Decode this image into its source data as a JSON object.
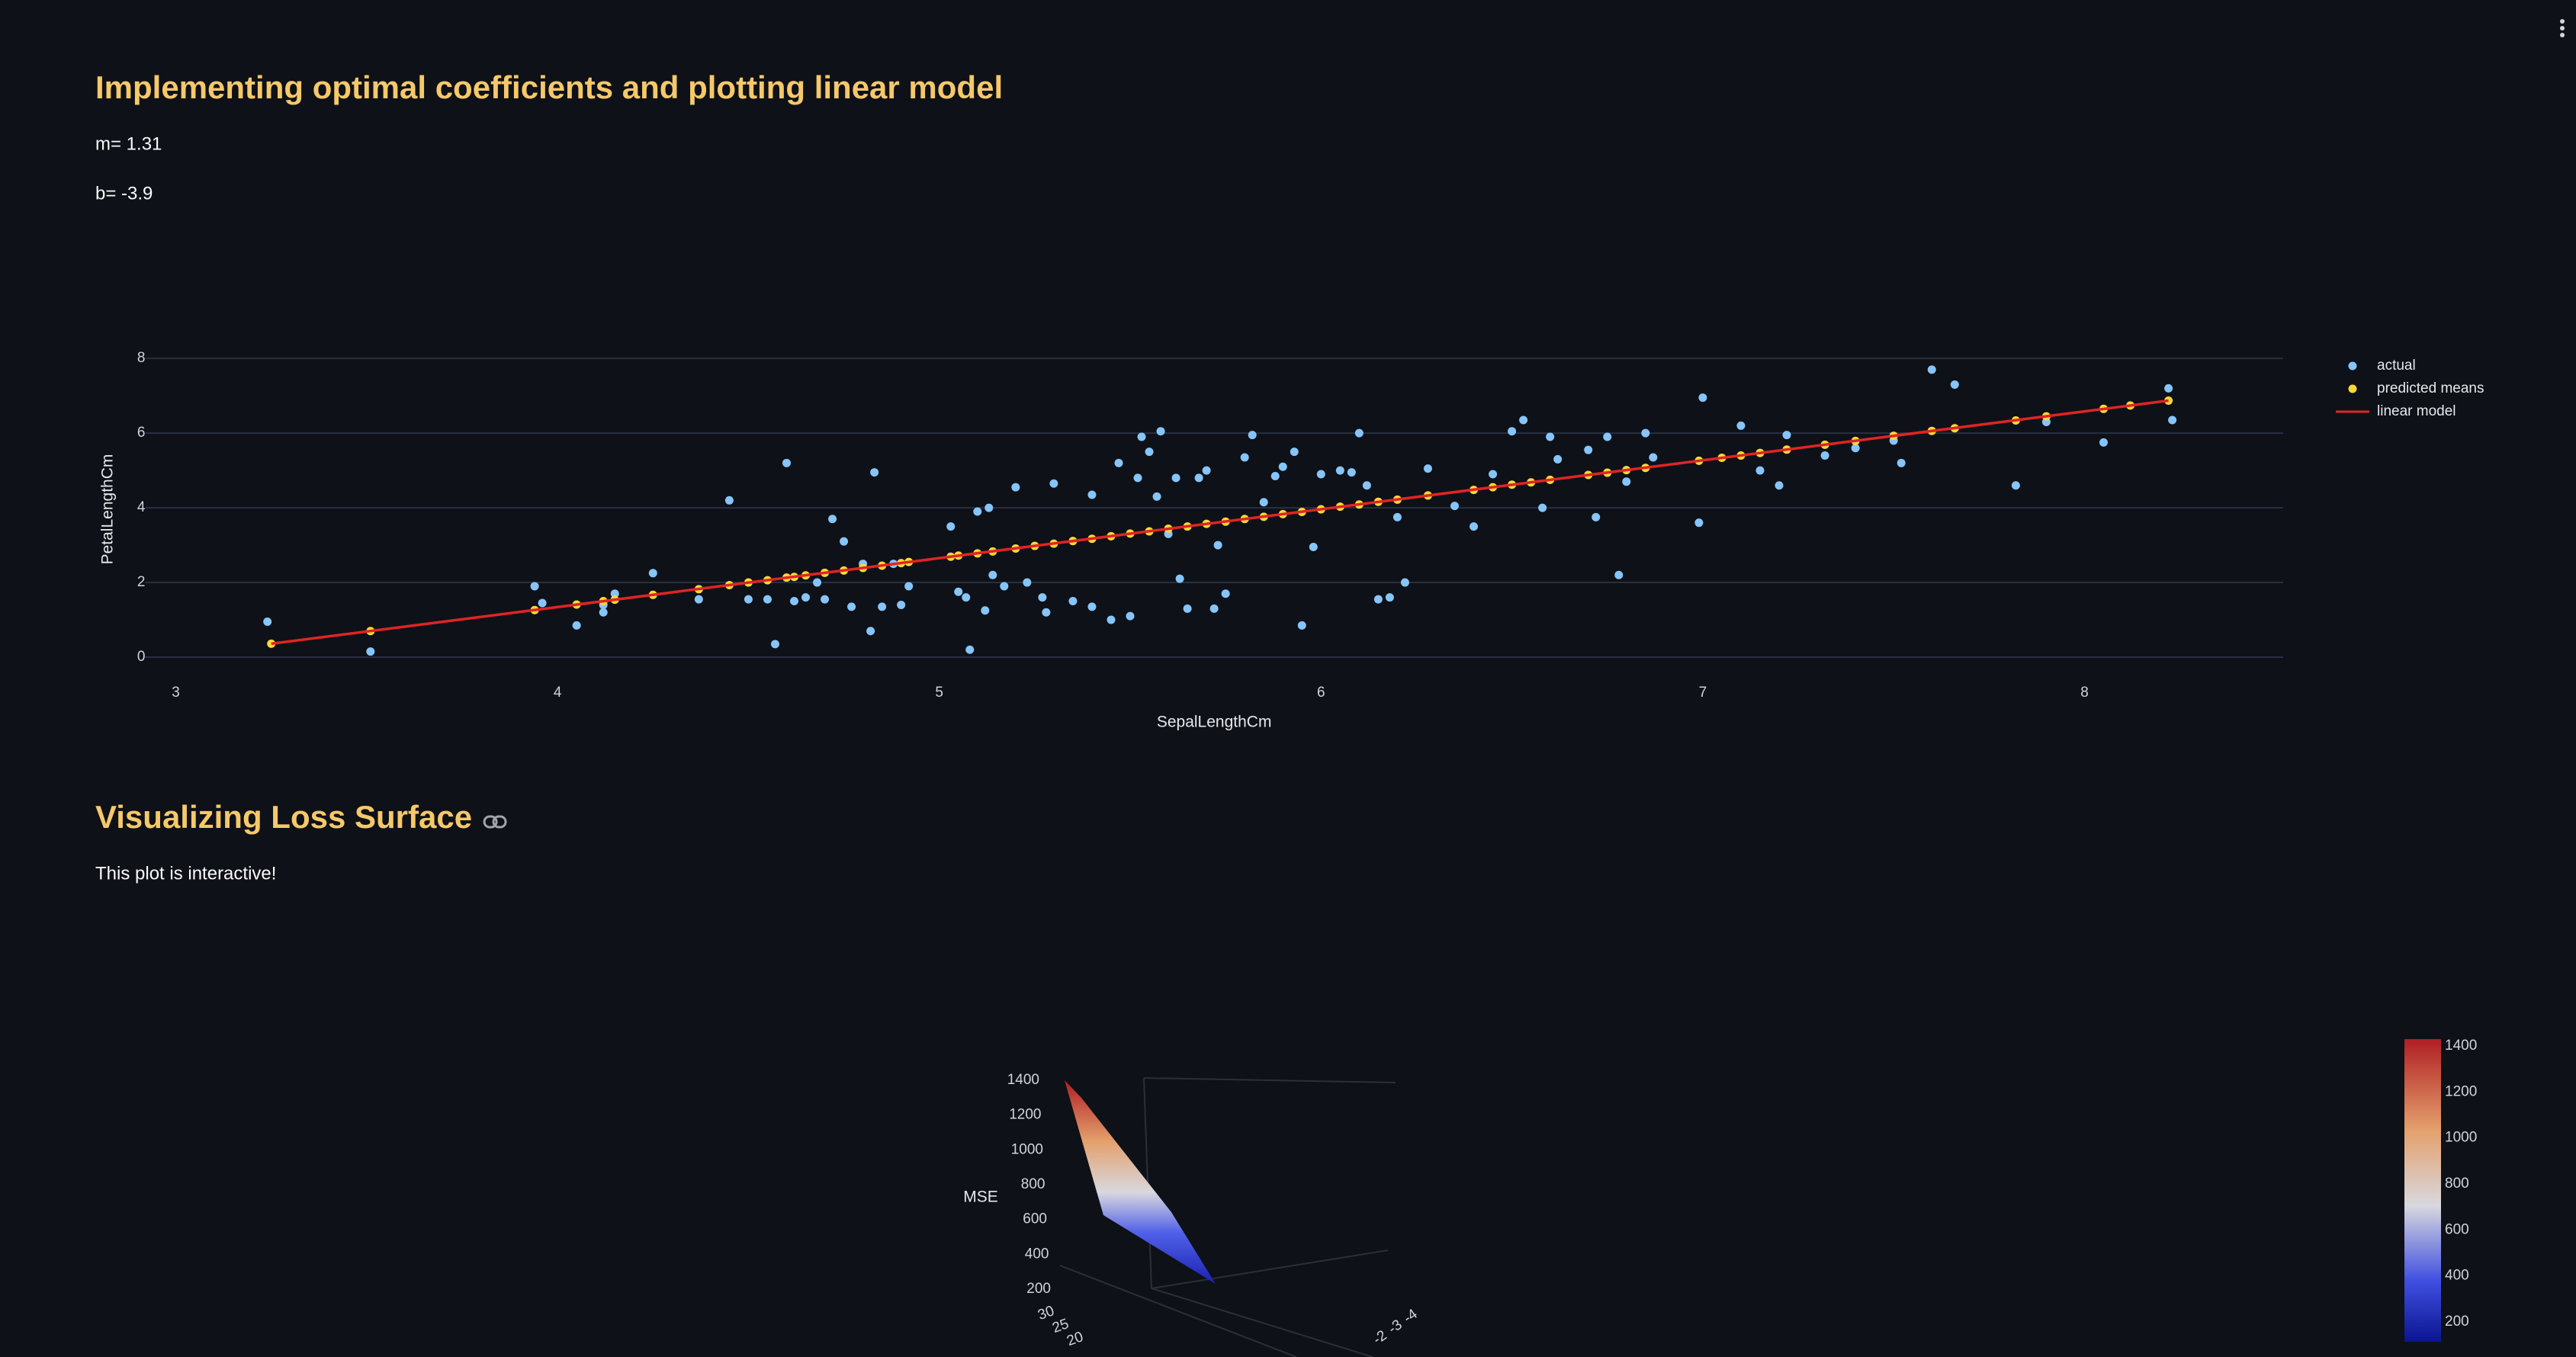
{
  "header": {
    "title": "Implementing optimal coefficients and plotting linear model",
    "m": "m= 1.31",
    "b": "b= -3.9"
  },
  "chart_data": {
    "type": "scatter",
    "xlabel": "SepalLengthCm",
    "ylabel": "PetalLengthCm",
    "xlim": [
      2.92,
      8.52
    ],
    "ylim": [
      -0.4,
      8.8
    ],
    "xticks": [
      3,
      4,
      5,
      6,
      7,
      8
    ],
    "yticks": [
      0,
      2,
      4,
      6,
      8
    ],
    "grid": "y",
    "legend": "right",
    "series": [
      {
        "name": "actual",
        "color": "#86c5fa",
        "mode": "markers",
        "x": [
          3.24,
          3.51,
          3.94,
          3.96,
          4.05,
          4.12,
          4.12,
          4.15,
          4.25,
          4.37,
          4.45,
          4.5,
          4.55,
          4.57,
          4.6,
          4.62,
          4.65,
          4.68,
          4.7,
          4.72,
          4.75,
          4.77,
          4.8,
          4.82,
          4.83,
          4.85,
          4.88,
          4.9,
          4.92,
          5.03,
          5.05,
          5.07,
          5.08,
          5.1,
          5.12,
          5.13,
          5.14,
          5.17,
          5.2,
          5.23,
          5.27,
          5.28,
          5.3,
          5.35,
          5.4,
          5.4,
          5.45,
          5.47,
          5.5,
          5.52,
          5.53,
          5.55,
          5.57,
          5.58,
          5.6,
          5.62,
          5.63,
          5.65,
          5.68,
          5.7,
          5.72,
          5.73,
          5.75,
          5.8,
          5.82,
          5.85,
          5.88,
          5.9,
          5.93,
          5.95,
          5.98,
          6.0,
          6.05,
          6.08,
          6.1,
          6.12,
          6.15,
          6.18,
          6.2,
          6.22,
          6.28,
          6.35,
          6.4,
          6.45,
          6.5,
          6.53,
          6.58,
          6.6,
          6.62,
          6.7,
          6.72,
          6.75,
          6.78,
          6.8,
          6.85,
          6.87,
          6.99,
          7.0,
          7.1,
          7.15,
          7.2,
          7.22,
          7.32,
          7.4,
          7.5,
          7.52,
          7.6,
          7.66,
          7.82,
          7.9,
          8.05,
          8.22,
          8.23
        ],
        "values": [
          0.95,
          0.15,
          1.9,
          1.45,
          0.85,
          1.2,
          1.4,
          1.7,
          2.25,
          1.55,
          4.2,
          1.55,
          1.55,
          0.35,
          5.2,
          1.5,
          1.6,
          2.0,
          1.55,
          3.7,
          3.1,
          1.35,
          2.5,
          0.7,
          4.95,
          1.35,
          2.5,
          1.4,
          1.9,
          3.5,
          1.75,
          1.6,
          0.2,
          3.9,
          1.25,
          4.0,
          2.2,
          1.9,
          4.55,
          2.0,
          1.6,
          1.2,
          4.65,
          1.5,
          1.35,
          4.35,
          1.0,
          5.2,
          1.1,
          4.8,
          5.9,
          5.5,
          4.3,
          6.05,
          3.3,
          4.8,
          2.1,
          1.3,
          4.8,
          5.0,
          1.3,
          3.0,
          1.7,
          5.35,
          5.95,
          4.15,
          4.85,
          5.1,
          5.5,
          0.85,
          2.95,
          4.9,
          5.0,
          4.95,
          6.0,
          4.6,
          1.55,
          1.6,
          3.75,
          2.0,
          5.05,
          4.05,
          3.5,
          4.9,
          6.05,
          6.35,
          4.0,
          5.9,
          5.3,
          5.55,
          3.75,
          5.9,
          2.2,
          4.7,
          6.0,
          5.35,
          3.6,
          6.95,
          6.2,
          5.0,
          4.6,
          5.95,
          5.4,
          5.6,
          5.8,
          5.2,
          7.7,
          7.3,
          4.6,
          6.3,
          5.75,
          7.2,
          6.35
        ]
      },
      {
        "name": "predicted means",
        "color": "#fdd835",
        "mode": "markers",
        "x": [
          3.25,
          3.51,
          3.94,
          4.05,
          4.12,
          4.15,
          4.25,
          4.37,
          4.45,
          4.5,
          4.55,
          4.6,
          4.62,
          4.65,
          4.7,
          4.75,
          4.8,
          4.85,
          4.9,
          4.92,
          5.03,
          5.05,
          5.1,
          5.14,
          5.2,
          5.25,
          5.3,
          5.35,
          5.4,
          5.45,
          5.5,
          5.55,
          5.6,
          5.65,
          5.7,
          5.75,
          5.8,
          5.85,
          5.9,
          5.95,
          6.0,
          6.05,
          6.1,
          6.15,
          6.2,
          6.28,
          6.4,
          6.45,
          6.5,
          6.55,
          6.6,
          6.7,
          6.75,
          6.8,
          6.85,
          6.99,
          7.05,
          7.1,
          7.15,
          7.22,
          7.32,
          7.4,
          7.5,
          7.6,
          7.66,
          7.82,
          7.9,
          8.05,
          8.12,
          8.22
        ],
        "values": [
          0.36,
          0.7,
          1.26,
          1.41,
          1.5,
          1.54,
          1.67,
          1.82,
          1.93,
          2.0,
          2.06,
          2.13,
          2.15,
          2.19,
          2.26,
          2.32,
          2.39,
          2.45,
          2.52,
          2.55,
          2.69,
          2.72,
          2.78,
          2.83,
          2.91,
          2.98,
          3.04,
          3.11,
          3.17,
          3.24,
          3.31,
          3.37,
          3.44,
          3.5,
          3.57,
          3.63,
          3.7,
          3.76,
          3.83,
          3.89,
          3.96,
          4.03,
          4.09,
          4.16,
          4.22,
          4.33,
          4.48,
          4.55,
          4.62,
          4.68,
          4.75,
          4.88,
          4.94,
          5.01,
          5.07,
          5.26,
          5.34,
          5.4,
          5.47,
          5.56,
          5.69,
          5.79,
          5.93,
          6.06,
          6.13,
          6.34,
          6.45,
          6.65,
          6.74,
          6.87
        ]
      },
      {
        "name": "linear model",
        "color": "#e02424",
        "mode": "lines",
        "x": [
          3.25,
          8.22
        ],
        "values": [
          0.36,
          6.87
        ]
      }
    ]
  },
  "loss_surface": {
    "title": "Visualizing Loss Surface",
    "note": "This plot is interactive!",
    "zlabel": "MSE",
    "zticks": [
      200,
      400,
      600,
      800,
      1000,
      1200,
      1400
    ],
    "yticks": [
      30,
      25,
      20
    ],
    "xticks": [
      -2,
      -3,
      -4
    ],
    "colorbar_lim": [
      114,
      1430
    ],
    "colorbar_ticks": [
      200,
      400,
      600,
      800,
      1000,
      1200,
      1400
    ]
  }
}
